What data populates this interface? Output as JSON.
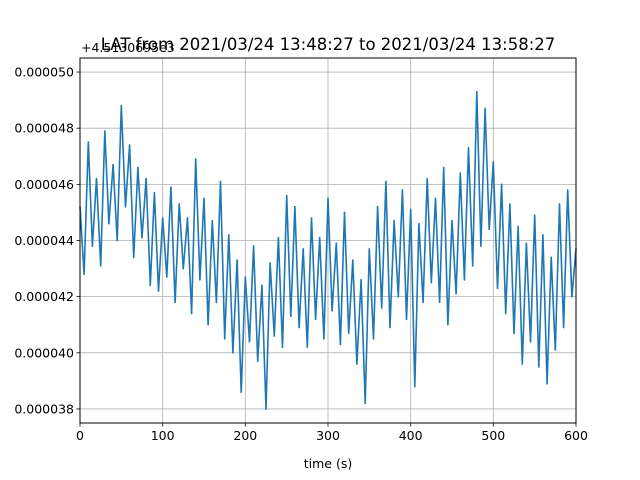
{
  "chart_data": {
    "type": "line",
    "title": "LAT from 2021/03/24 13:48:27 to 2021/03/24 13:58:27",
    "xlabel": "time (s)",
    "ylabel": "",
    "y_offset_label": "+4.5130695e3",
    "xlim": [
      0,
      600
    ],
    "ylim": [
      3.75e-05,
      5.05e-05
    ],
    "x_ticks": [
      0,
      100,
      200,
      300,
      400,
      500,
      600
    ],
    "x_tick_labels": [
      "0",
      "100",
      "200",
      "300",
      "400",
      "500",
      "600"
    ],
    "y_ticks": [
      3.8e-05,
      4e-05,
      4.2e-05,
      4.4e-05,
      4.6e-05,
      4.8e-05,
      5e-05
    ],
    "y_tick_labels": [
      "0.000038",
      "0.000040",
      "0.000042",
      "0.000044",
      "0.000046",
      "0.000048",
      "0.000050"
    ],
    "grid": true,
    "line_color": "#1f77b4",
    "series": [
      {
        "x": [
          0,
          5,
          10,
          15,
          20,
          25,
          30,
          35,
          40,
          45,
          50,
          55,
          60,
          65,
          70,
          75,
          80,
          85,
          90,
          95,
          100,
          105,
          110,
          115,
          120,
          125,
          130,
          135,
          140,
          145,
          150,
          155,
          160,
          165,
          170,
          175,
          180,
          185,
          190,
          195,
          200,
          205,
          210,
          215,
          220,
          225,
          230,
          235,
          240,
          245,
          250,
          255,
          260,
          265,
          270,
          275,
          280,
          285,
          290,
          295,
          300,
          305,
          310,
          315,
          320,
          325,
          330,
          335,
          340,
          345,
          350,
          355,
          360,
          365,
          370,
          375,
          380,
          385,
          390,
          395,
          400,
          405,
          410,
          415,
          420,
          425,
          430,
          435,
          440,
          445,
          450,
          455,
          460,
          465,
          470,
          475,
          480,
          485,
          490,
          495,
          500,
          505,
          510,
          515,
          520,
          525,
          530,
          535,
          540,
          545,
          550,
          555,
          560,
          565,
          570,
          575,
          580,
          585,
          590,
          595,
          600
        ],
        "y": [
          4.52e-05,
          4.28e-05,
          4.75e-05,
          4.38e-05,
          4.62e-05,
          4.31e-05,
          4.79e-05,
          4.46e-05,
          4.67e-05,
          4.4e-05,
          4.88e-05,
          4.52e-05,
          4.74e-05,
          4.34e-05,
          4.66e-05,
          4.41e-05,
          4.62e-05,
          4.24e-05,
          4.57e-05,
          4.22e-05,
          4.48e-05,
          4.27e-05,
          4.59e-05,
          4.18e-05,
          4.53e-05,
          4.3e-05,
          4.48e-05,
          4.14e-05,
          4.69e-05,
          4.26e-05,
          4.55e-05,
          4.1e-05,
          4.47e-05,
          4.18e-05,
          4.61e-05,
          4.05e-05,
          4.42e-05,
          4e-05,
          4.33e-05,
          3.86e-05,
          4.27e-05,
          4.04e-05,
          4.38e-05,
          3.97e-05,
          4.24e-05,
          3.8e-05,
          4.32e-05,
          4.06e-05,
          4.41e-05,
          4.02e-05,
          4.56e-05,
          4.13e-05,
          4.52e-05,
          4.09e-05,
          4.37e-05,
          4.02e-05,
          4.48e-05,
          4.12e-05,
          4.41e-05,
          4.05e-05,
          4.55e-05,
          4.15e-05,
          4.39e-05,
          4.03e-05,
          4.5e-05,
          4.07e-05,
          4.33e-05,
          3.96e-05,
          4.26e-05,
          3.82e-05,
          4.37e-05,
          4.05e-05,
          4.52e-05,
          4.16e-05,
          4.61e-05,
          4.09e-05,
          4.47e-05,
          4.2e-05,
          4.58e-05,
          4.12e-05,
          4.51e-05,
          3.88e-05,
          4.46e-05,
          4.18e-05,
          4.62e-05,
          4.25e-05,
          4.55e-05,
          4.18e-05,
          4.66e-05,
          4.1e-05,
          4.47e-05,
          4.21e-05,
          4.64e-05,
          4.26e-05,
          4.73e-05,
          4.31e-05,
          4.93e-05,
          4.38e-05,
          4.87e-05,
          4.44e-05,
          4.68e-05,
          4.23e-05,
          4.6e-05,
          4.14e-05,
          4.53e-05,
          4.07e-05,
          4.45e-05,
          3.96e-05,
          4.39e-05,
          4.04e-05,
          4.49e-05,
          3.95e-05,
          4.42e-05,
          3.89e-05,
          4.34e-05,
          4.01e-05,
          4.53e-05,
          4.09e-05,
          4.58e-05,
          4.2e-05,
          4.37e-05
        ]
      }
    ]
  }
}
